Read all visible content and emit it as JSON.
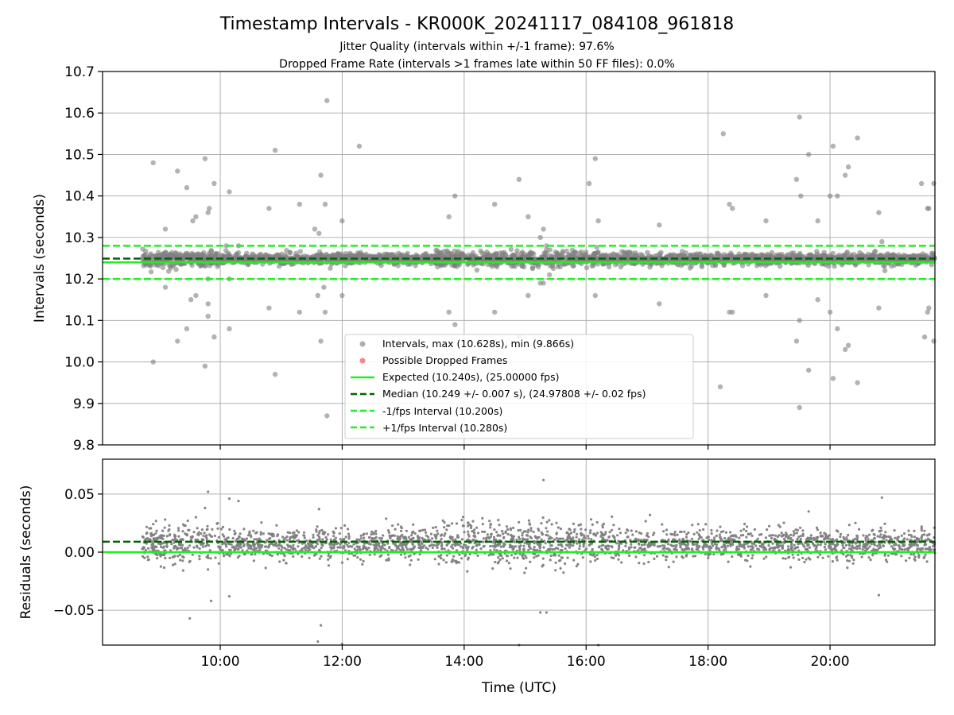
{
  "chart_data": [
    {
      "type": "scatter",
      "panel": "intervals",
      "title": "Timestamp Intervals - KR000K_20241117_084108_961818",
      "subtitles": [
        "Jitter Quality (intervals within +/-1 frame): 97.6%",
        "Dropped Frame Rate (intervals >1 frames late within 50 FF files): 0.0%"
      ],
      "xlabel": "",
      "ylabel": "Intervals (seconds)",
      "xlim": [
        8.07,
        21.72
      ],
      "ylim": [
        9.8,
        10.7
      ],
      "x_ticks": [
        10,
        12,
        14,
        16,
        18,
        20
      ],
      "y_ticks": [
        9.8,
        9.9,
        10.0,
        10.1,
        10.2,
        10.3,
        10.4,
        10.5,
        10.6,
        10.7
      ],
      "y_tick_labels": [
        "9.8",
        "9.9",
        "10.0",
        "10.1",
        "10.2",
        "10.3",
        "10.4",
        "10.5",
        "10.6",
        "10.7"
      ],
      "grid": true,
      "legend_position": "lower-center",
      "legend": [
        {
          "label": "Intervals, max (10.628s), min (9.866s)",
          "kind": "point",
          "color": "#808080"
        },
        {
          "label": "Possible Dropped Frames",
          "kind": "point",
          "color": "#ff4040"
        },
        {
          "label": "Expected (10.240s), (25.00000 fps)",
          "kind": "line",
          "color": "#22ee22"
        },
        {
          "label": "Median (10.249 +/- 0.007 s), (24.97808 +/- 0.02 fps)",
          "kind": "dashed",
          "color": "#006400"
        },
        {
          "label": "-1/fps Interval (10.200s)",
          "kind": "dashed",
          "color": "#22ee22"
        },
        {
          "label": "+1/fps Interval (10.280s)",
          "kind": "dashed",
          "color": "#22ee22"
        }
      ],
      "lines": [
        {
          "name": "expected",
          "y": 10.24,
          "style": "solid",
          "color": "#22ee22"
        },
        {
          "name": "median",
          "y": 10.249,
          "style": "dashed",
          "color": "#006400"
        },
        {
          "name": "minus-one-fps",
          "y": 10.2,
          "style": "dashed",
          "color": "#22ee22"
        },
        {
          "name": "plus-one-fps",
          "y": 10.28,
          "style": "dashed",
          "color": "#22ee22"
        }
      ],
      "band": {
        "x_range": [
          8.72,
          21.72
        ],
        "center": 10.248,
        "spread": 0.012
      },
      "outliers": [
        [
          8.9,
          10.48
        ],
        [
          9.1,
          10.32
        ],
        [
          9.3,
          10.46
        ],
        [
          9.45,
          10.42
        ],
        [
          9.55,
          10.34
        ],
        [
          9.6,
          10.35
        ],
        [
          9.75,
          10.49
        ],
        [
          9.82,
          10.37
        ],
        [
          9.8,
          10.36
        ],
        [
          9.9,
          10.43
        ],
        [
          10.15,
          10.41
        ],
        [
          10.1,
          10.28
        ],
        [
          10.3,
          10.28
        ],
        [
          10.8,
          10.37
        ],
        [
          10.9,
          10.51
        ],
        [
          11.3,
          10.38
        ],
        [
          11.55,
          10.32
        ],
        [
          11.62,
          10.31
        ],
        [
          11.65,
          10.45
        ],
        [
          11.72,
          10.38
        ],
        [
          11.75,
          10.63
        ],
        [
          12.0,
          10.34
        ],
        [
          12.28,
          10.52
        ],
        [
          13.75,
          10.35
        ],
        [
          13.85,
          10.4
        ],
        [
          14.5,
          10.38
        ],
        [
          14.9,
          10.44
        ],
        [
          15.05,
          10.35
        ],
        [
          15.3,
          10.32
        ],
        [
          15.35,
          10.28
        ],
        [
          15.25,
          10.3
        ],
        [
          16.05,
          10.43
        ],
        [
          16.15,
          10.49
        ],
        [
          16.2,
          10.34
        ],
        [
          17.2,
          10.33
        ],
        [
          18.25,
          10.55
        ],
        [
          18.35,
          10.38
        ],
        [
          18.4,
          10.37
        ],
        [
          18.95,
          10.34
        ],
        [
          19.45,
          10.44
        ],
        [
          19.5,
          10.59
        ],
        [
          19.52,
          10.4
        ],
        [
          19.65,
          10.5
        ],
        [
          19.8,
          10.34
        ],
        [
          20.0,
          10.4
        ],
        [
          20.05,
          10.52
        ],
        [
          20.12,
          10.4
        ],
        [
          20.25,
          10.45
        ],
        [
          20.3,
          10.47
        ],
        [
          20.45,
          10.54
        ],
        [
          20.8,
          10.36
        ],
        [
          20.85,
          10.29
        ],
        [
          21.5,
          10.43
        ],
        [
          21.6,
          10.37
        ],
        [
          21.62,
          10.37
        ],
        [
          21.7,
          10.43
        ],
        [
          8.9,
          10.0
        ],
        [
          9.1,
          10.18
        ],
        [
          9.3,
          10.05
        ],
        [
          9.45,
          10.08
        ],
        [
          9.52,
          10.15
        ],
        [
          9.6,
          10.16
        ],
        [
          9.75,
          9.99
        ],
        [
          9.8,
          10.14
        ],
        [
          9.8,
          10.11
        ],
        [
          9.9,
          10.06
        ],
        [
          9.8,
          10.2
        ],
        [
          10.15,
          10.2
        ],
        [
          10.15,
          10.08
        ],
        [
          10.8,
          10.13
        ],
        [
          10.9,
          9.97
        ],
        [
          11.3,
          10.12
        ],
        [
          11.6,
          10.16
        ],
        [
          11.65,
          10.05
        ],
        [
          11.72,
          10.12
        ],
        [
          11.75,
          9.87
        ],
        [
          11.7,
          10.18
        ],
        [
          12.0,
          10.16
        ],
        [
          13.75,
          10.12
        ],
        [
          13.85,
          10.09
        ],
        [
          14.5,
          10.12
        ],
        [
          14.9,
          10.06
        ],
        [
          15.05,
          10.16
        ],
        [
          15.25,
          10.19
        ],
        [
          15.3,
          10.19
        ],
        [
          15.4,
          10.21
        ],
        [
          16.15,
          10.16
        ],
        [
          17.2,
          10.14
        ],
        [
          18.2,
          9.94
        ],
        [
          18.35,
          10.12
        ],
        [
          18.4,
          10.12
        ],
        [
          18.95,
          10.16
        ],
        [
          19.45,
          10.05
        ],
        [
          19.5,
          10.1
        ],
        [
          19.5,
          9.89
        ],
        [
          19.65,
          9.98
        ],
        [
          19.8,
          10.15
        ],
        [
          20.0,
          10.12
        ],
        [
          20.05,
          9.96
        ],
        [
          20.12,
          10.08
        ],
        [
          20.25,
          10.03
        ],
        [
          20.3,
          10.04
        ],
        [
          20.45,
          9.95
        ],
        [
          20.8,
          10.13
        ],
        [
          20.9,
          10.22
        ],
        [
          21.6,
          10.12
        ],
        [
          21.62,
          10.13
        ],
        [
          21.7,
          10.05
        ],
        [
          21.55,
          10.06
        ]
      ]
    },
    {
      "type": "scatter",
      "panel": "residuals",
      "xlabel": "Time (UTC)",
      "ylabel": "Residuals (seconds)",
      "xlim": [
        8.07,
        21.72
      ],
      "ylim": [
        -0.08,
        0.08
      ],
      "x_ticks": [
        10,
        12,
        14,
        16,
        18,
        20
      ],
      "x_tick_labels": [
        "10:00",
        "12:00",
        "14:00",
        "16:00",
        "18:00",
        "20:00"
      ],
      "y_ticks": [
        -0.05,
        0.0,
        0.05
      ],
      "y_tick_labels": [
        "−0.05",
        "0.00",
        "0.05"
      ],
      "grid": true,
      "lines": [
        {
          "name": "median-residual",
          "y": 0.009,
          "style": "dashed",
          "color": "#006400"
        },
        {
          "name": "expected-residual",
          "y": 0.0,
          "style": "solid",
          "color": "#22ee22"
        }
      ],
      "band": {
        "x_range": [
          8.72,
          21.72
        ],
        "center": 0.007,
        "spread": 0.012
      },
      "outliers": [
        [
          9.5,
          -0.057
        ],
        [
          9.8,
          0.052
        ],
        [
          9.85,
          -0.042
        ],
        [
          9.75,
          0.038
        ],
        [
          10.15,
          0.046
        ],
        [
          10.15,
          -0.038
        ],
        [
          10.3,
          0.044
        ],
        [
          11.6,
          -0.077
        ],
        [
          11.62,
          0.037
        ],
        [
          11.65,
          -0.063
        ],
        [
          12.0,
          -0.079
        ],
        [
          15.3,
          0.062
        ],
        [
          15.25,
          -0.052
        ],
        [
          15.35,
          -0.052
        ],
        [
          14.9,
          -0.08
        ],
        [
          16.2,
          -0.08
        ],
        [
          20.8,
          -0.037
        ],
        [
          20.85,
          0.047
        ],
        [
          9.6,
          0.03
        ],
        [
          19.65,
          0.035
        ]
      ]
    }
  ]
}
